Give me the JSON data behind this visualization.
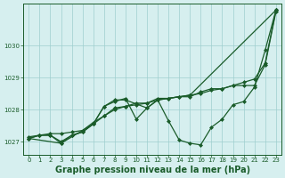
{
  "xlabel": "Graphe pression niveau de la mer (hPa)",
  "ylim": [
    1026.6,
    1031.3
  ],
  "xlim": [
    -0.5,
    23.5
  ],
  "xticks": [
    0,
    1,
    2,
    3,
    4,
    5,
    6,
    7,
    8,
    9,
    10,
    11,
    12,
    13,
    14,
    15,
    16,
    17,
    18,
    19,
    20,
    21,
    22,
    23
  ],
  "yticks": [
    1027,
    1028,
    1029,
    1030
  ],
  "bg_color": "#d6efef",
  "grid_color": "#9ecfcf",
  "line_color": "#1a5c2a",
  "lines": [
    {
      "x": [
        0,
        1,
        2,
        3,
        4,
        5,
        6,
        7,
        8,
        9,
        10,
        11,
        12,
        13,
        14,
        15,
        16,
        17,
        18,
        19,
        20,
        21,
        22,
        23
      ],
      "y": [
        1027.1,
        1027.2,
        1027.2,
        1027.0,
        1027.2,
        1027.3,
        1027.55,
        1027.8,
        1028.0,
        1028.1,
        1028.15,
        1028.2,
        1028.3,
        1028.35,
        1028.4,
        1028.45,
        1028.5,
        1028.6,
        1028.65,
        1028.75,
        1028.85,
        1028.95,
        1029.45,
        1031.1
      ]
    },
    {
      "x": [
        0,
        1,
        2,
        3,
        4,
        5,
        6,
        7,
        8,
        9,
        10,
        11,
        12,
        13,
        14,
        15,
        16,
        17,
        18,
        19,
        20,
        21,
        22,
        23
      ],
      "y": [
        1027.1,
        1027.2,
        1027.2,
        1026.95,
        1027.2,
        1027.3,
        1027.55,
        1028.1,
        1028.25,
        1028.35,
        1027.7,
        1028.05,
        1028.3,
        1027.65,
        1027.05,
        1026.95,
        1026.9,
        1027.45,
        1027.7,
        1028.15,
        1028.25,
        1028.7,
        1029.85,
        1031.1
      ]
    },
    {
      "x": [
        0,
        3,
        6,
        7,
        8,
        9,
        11,
        12,
        15,
        23
      ],
      "y": [
        1027.1,
        1026.95,
        1027.55,
        1028.1,
        1028.3,
        1028.3,
        1028.05,
        1028.3,
        1028.45,
        1031.1
      ]
    },
    {
      "x": [
        0,
        1,
        2,
        3,
        4,
        5,
        6,
        7,
        8,
        9,
        10,
        11,
        12,
        13,
        14,
        15,
        16,
        17,
        18,
        19,
        20,
        21,
        22,
        23
      ],
      "y": [
        1027.15,
        1027.2,
        1027.25,
        1027.25,
        1027.3,
        1027.35,
        1027.6,
        1027.8,
        1028.05,
        1028.1,
        1028.2,
        1028.2,
        1028.35,
        1028.35,
        1028.4,
        1028.4,
        1028.55,
        1028.65,
        1028.65,
        1028.75,
        1028.75,
        1028.75,
        1029.4,
        1031.05
      ]
    }
  ],
  "marker": "D",
  "markersize": 2.0,
  "linewidth": 0.9,
  "font_color": "#1a5c2a",
  "label_fontsize": 7,
  "tick_fontsize": 5.0
}
